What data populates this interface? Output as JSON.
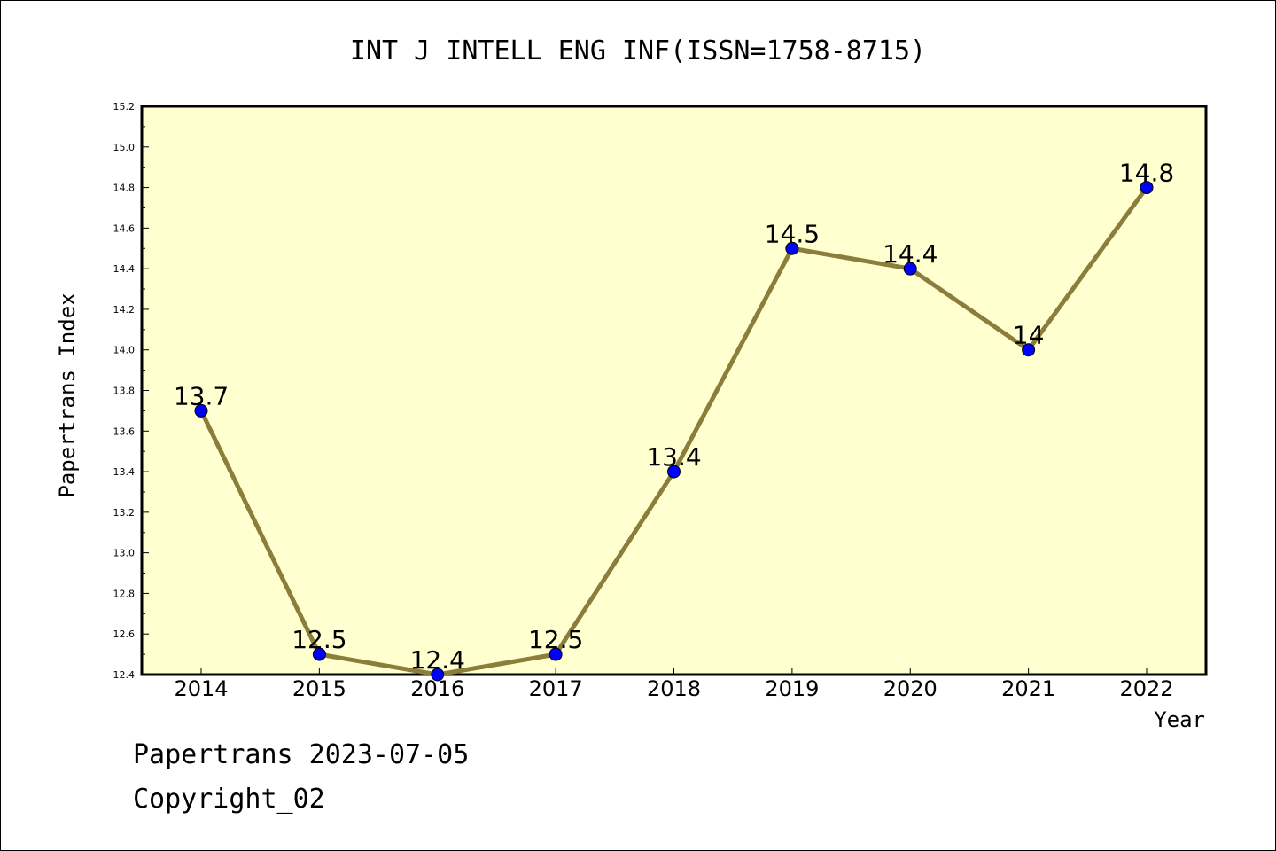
{
  "chart_data": {
    "type": "line",
    "title": "INT J INTELL ENG INF(ISSN=1758-8715)",
    "xlabel": "Year",
    "ylabel": "Papertrans Index",
    "x": [
      "2014",
      "2015",
      "2016",
      "2017",
      "2018",
      "2019",
      "2020",
      "2021",
      "2022"
    ],
    "series": [
      {
        "values": [
          13.7,
          12.5,
          12.4,
          12.5,
          13.4,
          14.5,
          14.4,
          14.0,
          14.8
        ],
        "data_labels": [
          "13.7",
          "12.5",
          "12.4",
          "12.5",
          "13.4",
          "14.5",
          "14.4",
          "14",
          "14.8"
        ]
      }
    ],
    "ylim": [
      12.4,
      15.2
    ],
    "yticks": [
      "12.4",
      "12.6",
      "12.8",
      "13.0",
      "13.2",
      "13.4",
      "13.6",
      "13.8",
      "14.0",
      "14.2",
      "14.4",
      "14.6",
      "14.8",
      "15.0",
      "15.2"
    ],
    "grid": false,
    "colors": {
      "plot_background": "#ffffd0",
      "line": "#8b7d3a",
      "marker": "#0000ff"
    }
  },
  "footer": {
    "line1": "Papertrans 2023-07-05",
    "line2": "Copyright_02"
  }
}
